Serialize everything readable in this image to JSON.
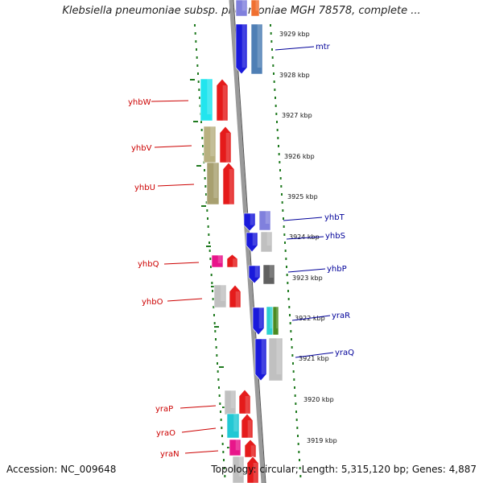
{
  "title": "Klebsiella pneumoniae subsp. pneumoniae MGH 78578, complete ...",
  "footer": {
    "accession": "Accession: NC_009648",
    "stats": "Topology: circular; Length: 5,315,120 bp; Genes: 4,887"
  },
  "colors": {
    "forward_label": "#cc0000",
    "reverse_label": "#000099",
    "backbone": "#888888",
    "ruler": "#1f7a1f"
  },
  "ticks": [
    "3929 kbp",
    "3928 kbp",
    "3927 kbp",
    "3926 kbp",
    "3925 kbp",
    "3924 kbp",
    "3923 kbp",
    "3922 kbp",
    "3921 kbp",
    "3920 kbp",
    "3919 kbp"
  ],
  "left_genes": [
    "yhbW",
    "yhbV",
    "yhbU",
    "yhbQ",
    "yhbO",
    "yraP",
    "yraO",
    "yraN"
  ],
  "right_genes": [
    "mtr",
    "yhbT",
    "yhbS",
    "yhbP",
    "yraR",
    "yraQ"
  ]
}
